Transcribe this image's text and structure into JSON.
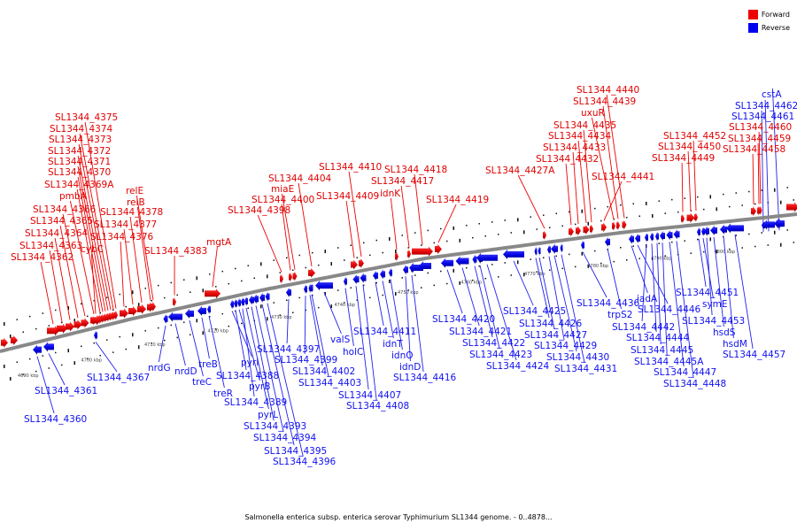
{
  "legend": {
    "forward": "Forward",
    "reverse": "Reverse",
    "forward_color": "#ee0000",
    "reverse_color": "#0000ee"
  },
  "caption": "Salmonella enterica subsp. enterica serovar Typhimurium SL1344 genome. - 0..4878...",
  "ticks": [
    "4690 kbp",
    "4700 kbp",
    "4710 kbp",
    "4720 kbp",
    "4730 kbp",
    "4740 kbp",
    "4750 kbp",
    "4760 kbp",
    "4770 kbp",
    "4780 kbp",
    "4790 kbp",
    "4800 kbp"
  ],
  "forward_labels": [
    "SL1344_4362",
    "SL1344_4363",
    "SL1344_4364",
    "SL1344_4365",
    "SL1344_4366",
    "pmbA",
    "SL1344_4369A",
    "SL1344_4370",
    "SL1344_4371",
    "SL1344_4372",
    "SL1344_4373",
    "SL1344_4374",
    "SL1344_4375",
    "cybC",
    "SL1344_4376",
    "SL1344_4377",
    "SL1344_4378",
    "relB",
    "relE",
    "SL1344_4383",
    "mgtA",
    "SL1344_4398",
    "SL1344_4400",
    "miaE",
    "SL1344_4404",
    "SL1344_4409",
    "SL1344_4410",
    "idnK",
    "SL1344_4417",
    "SL1344_4418",
    "SL1344_4419",
    "SL1344_4427A",
    "SL1344_4432",
    "SL1344_4433",
    "SL1344_4434",
    "SL1344_4435",
    "SL1344_4441",
    "uxuR",
    "SL1344_4439",
    "SL1344_4440",
    "SL1344_4449",
    "SL1344_4450",
    "SL1344_4452",
    "SL1344_4458",
    "SL1344_4459",
    "SL1344_4460"
  ],
  "reverse_labels": [
    "SL1344_4360",
    "SL1344_4361",
    "SL1344_4367",
    "nrdG",
    "nrdD",
    "treC",
    "treB",
    "treR",
    "pyrI",
    "SL1344_4388",
    "pyrB",
    "SL1344_4389",
    "pyrL",
    "SL1344_4393",
    "SL1344_4394",
    "SL1344_4395",
    "SL1344_4396",
    "SL1344_4397",
    "SL1344_4399",
    "SL1344_4402",
    "SL1344_4403",
    "valS",
    "holC",
    "SL1344_4407",
    "SL1344_4408",
    "SL1344_4411",
    "idnT",
    "idnO",
    "idnD",
    "SL1344_4416",
    "SL1344_4420",
    "SL1344_4421",
    "SL1344_4422",
    "SL1344_4423",
    "SL1344_4424",
    "SL1344_4425",
    "SL1344_4426",
    "SL1344_4427",
    "SL1344_4429",
    "SL1344_4430",
    "SL1344_4431",
    "SL1344_4436",
    "trpS2",
    "iadA",
    "SL1344_4446",
    "SL1344_4442",
    "SL1344_4444",
    "SL1344_4445",
    "SL1344_4445A",
    "SL1344_4447",
    "SL1344_4448",
    "SL1344_4451",
    "symE",
    "SL1344_4453",
    "hsdS",
    "hsdM",
    "SL1344_4457",
    "SL1344_4461",
    "SL1344_4462",
    "cstA"
  ]
}
